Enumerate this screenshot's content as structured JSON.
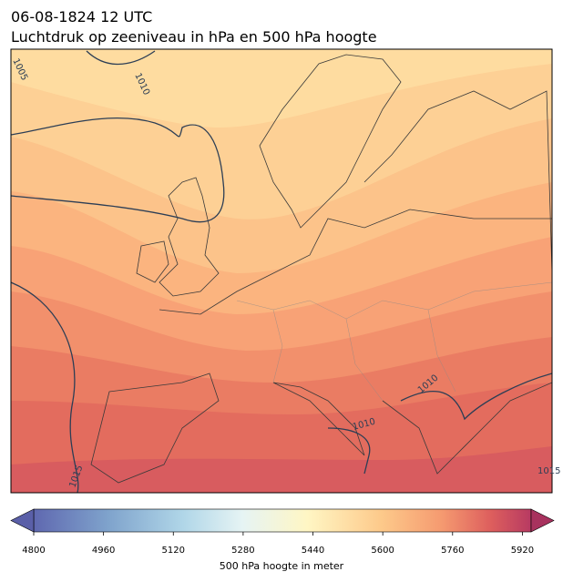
{
  "title": "06-08-1824 12 UTC",
  "subtitle": "Luchtdruk op zeeniveau in hPa en 500 hPa hoogte",
  "contour_labels": [
    "1005",
    "1010",
    "1015",
    "1010",
    "1010",
    "1015"
  ],
  "colorbar": {
    "label": "500 hPa hoogte in meter",
    "range": [
      4800,
      5940
    ],
    "ticks": [
      4800,
      4960,
      5120,
      5280,
      5440,
      5600,
      5760,
      5920
    ]
  }
}
